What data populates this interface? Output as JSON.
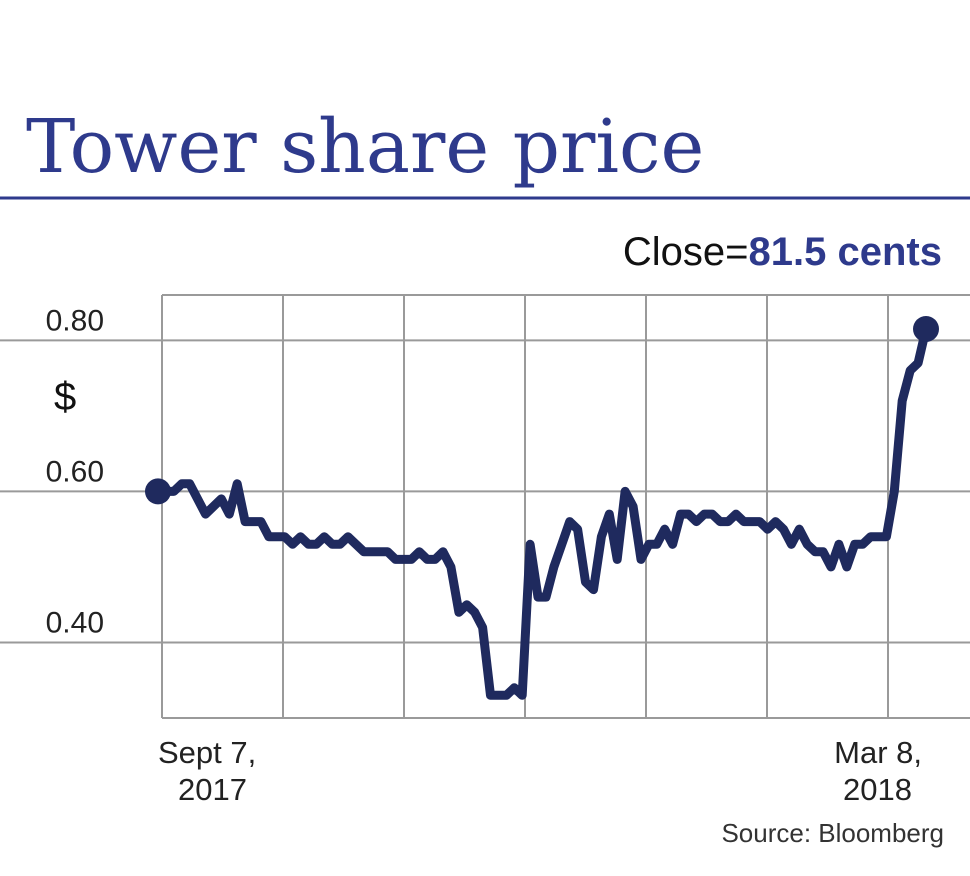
{
  "chart_data": {
    "type": "line",
    "title": "Tower share price",
    "close_label": "Close=",
    "close_value": "81.5 cents",
    "ylabel": "$",
    "ylim": [
      0.3,
      0.86
    ],
    "yticks": [
      {
        "value": 0.8,
        "label": "0.80"
      },
      {
        "value": 0.6,
        "label": "0.60"
      },
      {
        "value": 0.4,
        "label": "0.40"
      }
    ],
    "x_start_label": [
      "Sept 7,",
      "2017"
    ],
    "x_end_label": [
      "Mar 8,",
      "2018"
    ],
    "source": "Source: Bloomberg",
    "colors": {
      "line": "#1f2a5e",
      "title": "#2e3a8c",
      "grid": "#9a9a9a",
      "rule": "#2e3a8c"
    },
    "grid": true,
    "series": [
      {
        "values": [
          0.6,
          0.6,
          0.6,
          0.61,
          0.61,
          0.59,
          0.57,
          0.58,
          0.59,
          0.57,
          0.61,
          0.56,
          0.56,
          0.56,
          0.54,
          0.54,
          0.54,
          0.53,
          0.54,
          0.53,
          0.53,
          0.54,
          0.53,
          0.53,
          0.54,
          0.53,
          0.52,
          0.52,
          0.52,
          0.52,
          0.51,
          0.51,
          0.51,
          0.52,
          0.51,
          0.51,
          0.52,
          0.5,
          0.44,
          0.45,
          0.44,
          0.42,
          0.33,
          0.33,
          0.33,
          0.34,
          0.33,
          0.53,
          0.46,
          0.46,
          0.5,
          0.53,
          0.56,
          0.55,
          0.48,
          0.47,
          0.54,
          0.57,
          0.51,
          0.6,
          0.58,
          0.51,
          0.53,
          0.53,
          0.55,
          0.53,
          0.57,
          0.57,
          0.56,
          0.57,
          0.57,
          0.56,
          0.56,
          0.57,
          0.56,
          0.56,
          0.56,
          0.55,
          0.56,
          0.55,
          0.53,
          0.55,
          0.53,
          0.52,
          0.52,
          0.5,
          0.53,
          0.5,
          0.53,
          0.53,
          0.54,
          0.54,
          0.54,
          0.6,
          0.72,
          0.76,
          0.77,
          0.815
        ]
      }
    ]
  }
}
